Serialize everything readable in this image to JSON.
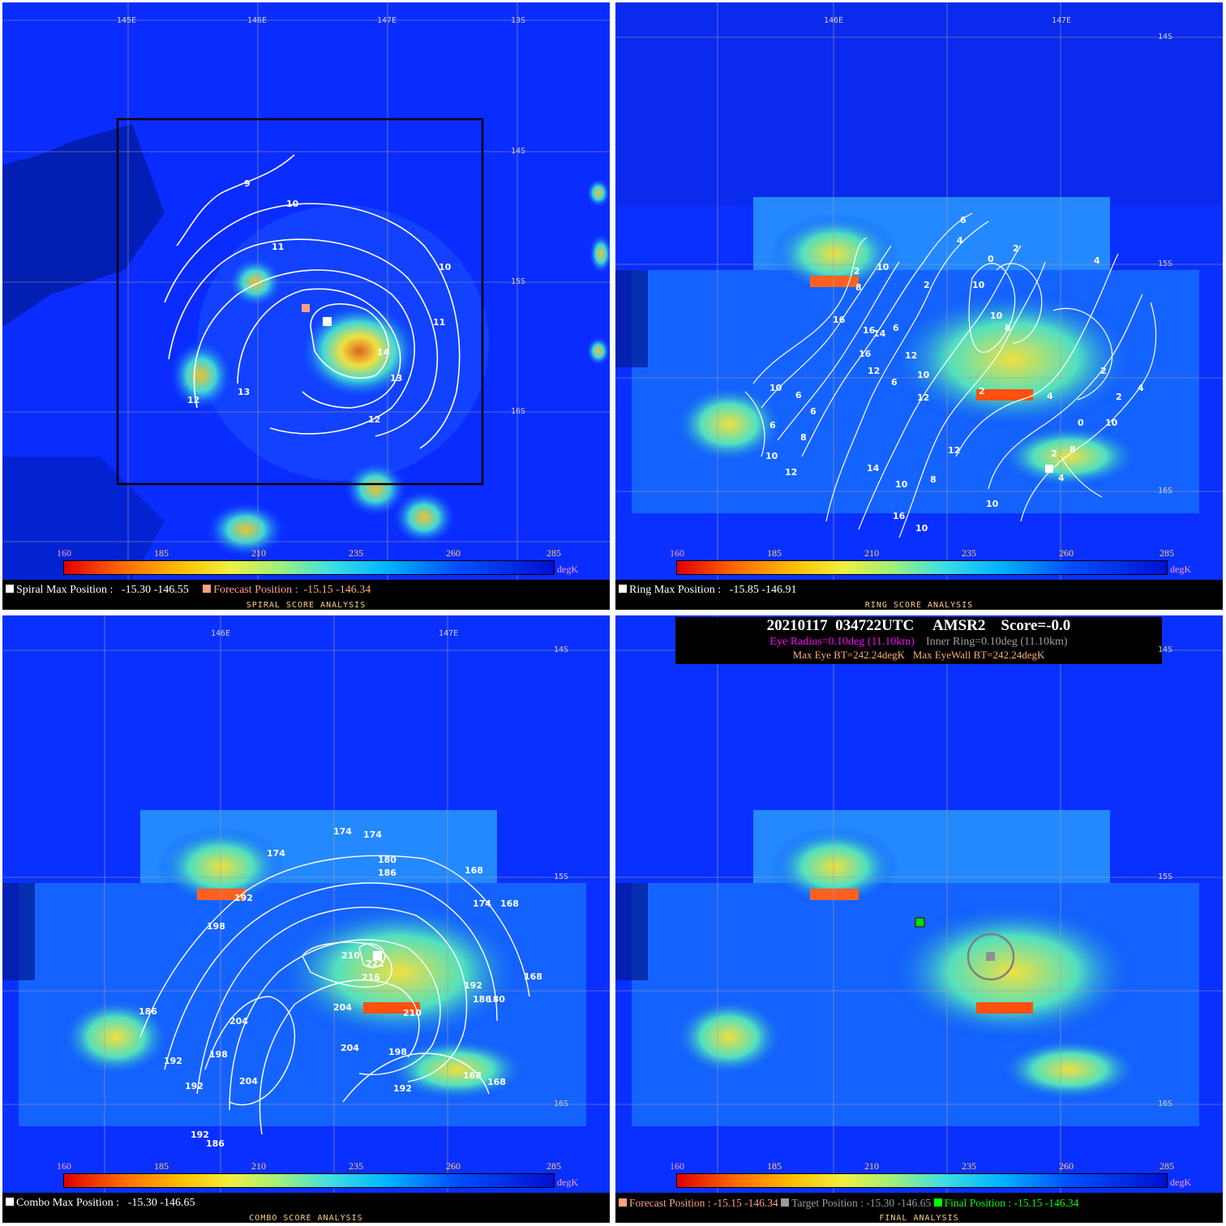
{
  "colorbar": {
    "ticks": [
      "160",
      "185",
      "210",
      "235",
      "260",
      "285"
    ],
    "unit": "degK"
  },
  "panels": {
    "spiral": {
      "lons": [
        "145E",
        "146E",
        "147E"
      ],
      "lats": [
        "13S",
        "14S",
        "15S",
        "16S"
      ],
      "contour_labels": [
        "9",
        "10",
        "10",
        "11",
        "11",
        "12",
        "12",
        "13",
        "13",
        "14"
      ],
      "max_label": "Spiral Max Position :",
      "max_value": "-15.30 -146.55",
      "forecast_label": "Forecast Position :",
      "forecast_value": "-15.15 -146.34",
      "title": "SPIRAL SCORE ANALYSIS"
    },
    "ring": {
      "lons": [
        "146E",
        "147E"
      ],
      "lats": [
        "14S",
        "15S",
        "16S"
      ],
      "contour_labels": [
        "6",
        "4",
        "2",
        "0",
        "4",
        "2",
        "10",
        "10",
        "2",
        "8",
        "10",
        "6",
        "16",
        "16",
        "14",
        "8",
        "12",
        "16",
        "12",
        "10",
        "12",
        "6",
        "2",
        "4",
        "6",
        "10",
        "6",
        "8",
        "6",
        "10",
        "12",
        "14",
        "12",
        "8",
        "10",
        "16",
        "10",
        "2",
        "0",
        "2",
        "4",
        "2",
        "8",
        "10",
        "10",
        "4"
      ],
      "max_label": "Ring Max Position :",
      "max_value": "-15.85 -146.91",
      "title": "RING SCORE ANALYSIS"
    },
    "combo": {
      "lons": [
        "146E",
        "147E"
      ],
      "lats": [
        "14S",
        "15S",
        "16S"
      ],
      "contour_labels": [
        "174",
        "174",
        "174",
        "180",
        "186",
        "168",
        "192",
        "174",
        "168",
        "198",
        "210",
        "222",
        "216",
        "204",
        "210",
        "192",
        "186",
        "180",
        "168",
        "186",
        "204",
        "204",
        "198",
        "192",
        "198",
        "204",
        "192",
        "168",
        "168",
        "192",
        "192",
        "186"
      ],
      "max_label": "Combo Max Position :",
      "max_value": "-15.30 -146.65",
      "title": "COMBO SCORE ANALYSIS"
    },
    "final": {
      "lats": [
        "14S",
        "15S",
        "16S"
      ],
      "info_line1": "20210117  034722UTC     AMSR2    Score=-0.0",
      "eye_radius": "Eye Radius=0.10deg (11.10km)",
      "inner_ring": "Inner Ring=0.10deg (11.10km)",
      "max_eye": "Max Eye BT=242.24degK",
      "max_eyewall": "Max EyeWall BT=242.24degK",
      "forecast_label": "Forecast Position :",
      "forecast_value": "-15.15 -146.34",
      "target_label": "Target Position :",
      "target_value": "-15.30 -146.65",
      "final_label": "Final Position :",
      "final_value": "-15.15 -146.34",
      "title": "FINAL ANALYSIS"
    }
  },
  "colors": {
    "forecast": "#ff9f80",
    "target": "#9a9a9a",
    "final": "#00ff00",
    "eye": "#ff00ff",
    "inner": "#a0a0a0",
    "bt": "#ffb070"
  }
}
